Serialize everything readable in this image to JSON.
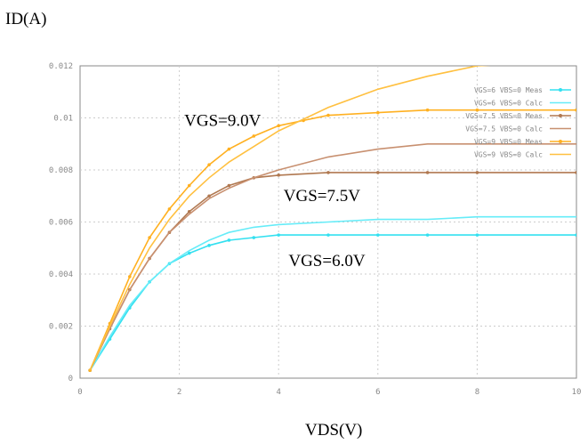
{
  "chart_data": {
    "type": "line",
    "ylabel": "ID(A)",
    "xlabel": "VDS(V)",
    "xlim": [
      0,
      10
    ],
    "ylim": [
      0,
      0.012
    ],
    "x_ticks": [
      "0",
      "2",
      "4",
      "6",
      "8",
      "10"
    ],
    "y_ticks": [
      "0",
      "0.002",
      "0.004",
      "0.006",
      "0.008",
      "0.01",
      "0.012"
    ],
    "grid": true,
    "legend_position": "top-right",
    "annotations": [
      {
        "text": "VGS=9.0V",
        "x": 2.1,
        "y": 0.0097
      },
      {
        "text": "VGS=7.5V",
        "x": 4.1,
        "y": 0.0068
      },
      {
        "text": "VGS=6.0V",
        "x": 4.2,
        "y": 0.0043
      }
    ],
    "series": [
      {
        "name": "VGS=6 VBS=0 Meas",
        "color": "#33e0f0",
        "marker": true,
        "x": [
          0.2,
          0.6,
          1.0,
          1.4,
          1.8,
          2.2,
          2.6,
          3.0,
          3.5,
          4.0,
          5.0,
          6.0,
          7.0,
          8.0,
          10.0
        ],
        "y": [
          0.0003,
          0.0015,
          0.0027,
          0.0037,
          0.0044,
          0.0048,
          0.0051,
          0.0053,
          0.0054,
          0.0055,
          0.0055,
          0.0055,
          0.0055,
          0.0055,
          0.0055
        ]
      },
      {
        "name": "VGS=6 VBS=0 Calc",
        "color": "#66ecf8",
        "marker": false,
        "x": [
          0.2,
          0.6,
          1.0,
          1.4,
          1.8,
          2.2,
          2.6,
          3.0,
          3.5,
          4.0,
          5.0,
          6.0,
          7.0,
          8.0,
          10.0
        ],
        "y": [
          0.0003,
          0.0016,
          0.0028,
          0.0037,
          0.0044,
          0.0049,
          0.0053,
          0.0056,
          0.0058,
          0.0059,
          0.006,
          0.0061,
          0.0061,
          0.0062,
          0.0062
        ]
      },
      {
        "name": "VGS=7.5 VBS=0 Meas",
        "color": "#b07850",
        "marker": true,
        "x": [
          0.2,
          0.6,
          1.0,
          1.4,
          1.8,
          2.2,
          2.6,
          3.0,
          3.5,
          4.0,
          5.0,
          6.0,
          7.0,
          8.0,
          10.0
        ],
        "y": [
          0.0003,
          0.0019,
          0.0034,
          0.0046,
          0.0056,
          0.0064,
          0.007,
          0.0074,
          0.0077,
          0.0078,
          0.0079,
          0.0079,
          0.0079,
          0.0079,
          0.0079
        ]
      },
      {
        "name": "VGS=7.5 VBS=0 Calc",
        "color": "#c89070",
        "marker": false,
        "x": [
          0.2,
          0.6,
          1.0,
          1.4,
          1.8,
          2.2,
          2.6,
          3.0,
          3.5,
          4.0,
          5.0,
          6.0,
          7.0,
          8.0,
          10.0
        ],
        "y": [
          0.0003,
          0.0019,
          0.0034,
          0.0046,
          0.0056,
          0.0063,
          0.0069,
          0.0073,
          0.0077,
          0.008,
          0.0085,
          0.0088,
          0.009,
          0.009,
          0.009
        ]
      },
      {
        "name": "VGS=9 VBS=0 Meas",
        "color": "#ffb020",
        "marker": true,
        "x": [
          0.2,
          0.6,
          1.0,
          1.4,
          1.8,
          2.2,
          2.6,
          3.0,
          3.5,
          4.0,
          4.5,
          5.0,
          6.0,
          7.0,
          8.0,
          10.0
        ],
        "y": [
          0.0003,
          0.0021,
          0.0039,
          0.0054,
          0.0065,
          0.0074,
          0.0082,
          0.0088,
          0.0093,
          0.0097,
          0.0099,
          0.0101,
          0.0102,
          0.0103,
          0.0103,
          0.0103
        ]
      },
      {
        "name": "VGS=9 VBS=0 Calc",
        "color": "#ffc040",
        "marker": false,
        "x": [
          0.2,
          0.6,
          1.0,
          1.4,
          1.8,
          2.2,
          2.6,
          3.0,
          3.5,
          4.0,
          5.0,
          6.0,
          7.0,
          8.0,
          10.0
        ],
        "y": [
          0.0003,
          0.002,
          0.0036,
          0.005,
          0.0061,
          0.007,
          0.0077,
          0.0083,
          0.0089,
          0.0095,
          0.0104,
          0.0111,
          0.0116,
          0.012,
          0.0122
        ]
      }
    ]
  }
}
